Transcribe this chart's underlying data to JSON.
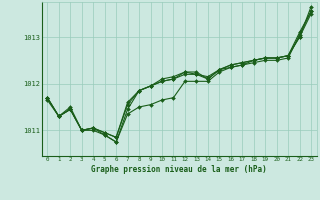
{
  "xlabel": "Graphe pression niveau de la mer (hPa)",
  "bg_color": "#cce8e0",
  "grid_color": "#99ccbb",
  "line_color": "#1a5e1a",
  "marker_color": "#1a5e1a",
  "xlim": [
    -0.5,
    23.5
  ],
  "ylim": [
    1010.45,
    1013.75
  ],
  "yticks": [
    1011,
    1012,
    1013
  ],
  "xticks": [
    0,
    1,
    2,
    3,
    4,
    5,
    6,
    7,
    8,
    9,
    10,
    11,
    12,
    13,
    14,
    15,
    16,
    17,
    18,
    19,
    20,
    21,
    22,
    23
  ],
  "series": [
    [
      1011.7,
      1011.3,
      1011.45,
      1011.0,
      1011.05,
      1010.95,
      1010.85,
      1011.6,
      1011.85,
      1011.95,
      1012.05,
      1012.1,
      1012.2,
      1012.2,
      1012.1,
      1012.3,
      1012.35,
      1012.4,
      1012.45,
      1012.5,
      1012.5,
      1012.55,
      1013.05,
      1013.55
    ],
    [
      1011.7,
      1011.3,
      1011.45,
      1011.0,
      1011.05,
      1010.95,
      1010.85,
      1011.55,
      1011.85,
      1011.95,
      1012.05,
      1012.1,
      1012.25,
      1012.2,
      1012.15,
      1012.3,
      1012.4,
      1012.45,
      1012.5,
      1012.55,
      1012.55,
      1012.6,
      1013.1,
      1013.55
    ],
    [
      1011.7,
      1011.3,
      1011.45,
      1011.0,
      1011.05,
      1010.9,
      1010.75,
      1011.45,
      1011.85,
      1011.95,
      1012.1,
      1012.15,
      1012.25,
      1012.25,
      1012.1,
      1012.3,
      1012.4,
      1012.45,
      1012.5,
      1012.55,
      1012.55,
      1012.6,
      1013.0,
      1013.5
    ],
    [
      1011.65,
      1011.3,
      1011.5,
      1011.0,
      1011.0,
      1010.9,
      1010.75,
      1011.35,
      1011.5,
      1011.55,
      1011.65,
      1011.7,
      1012.05,
      1012.05,
      1012.05,
      1012.25,
      1012.35,
      1012.4,
      1012.5,
      1012.55,
      1012.55,
      1012.6,
      1013.0,
      1013.65
    ]
  ]
}
